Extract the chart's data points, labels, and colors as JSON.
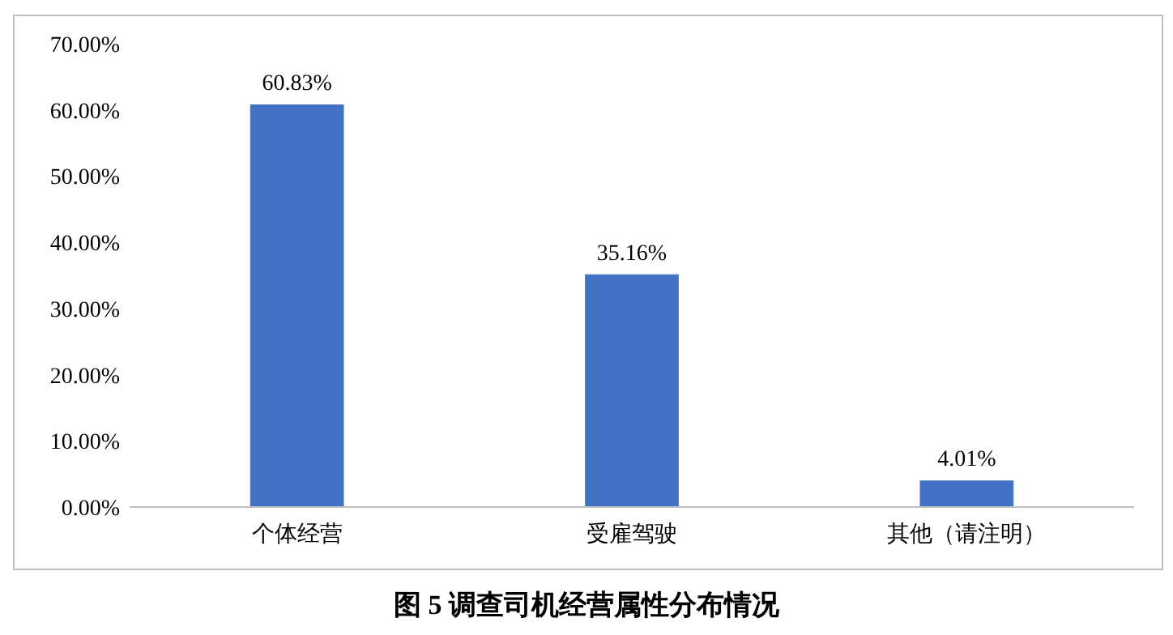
{
  "chart_data": {
    "type": "bar",
    "title": "图 5 调查司机经营属性分布情况",
    "categories": [
      "个体经营",
      "受雇驾驶",
      "其他（请注明）"
    ],
    "values": [
      60.83,
      35.16,
      4.01
    ],
    "value_labels": [
      "60.83%",
      "35.16%",
      "4.01%"
    ],
    "color": "#4472c4",
    "ylim": [
      0,
      70
    ],
    "yticks": [
      {
        "value": 0,
        "label": "0.00%"
      },
      {
        "value": 10,
        "label": "10.00%"
      },
      {
        "value": 20,
        "label": "20.00%"
      },
      {
        "value": 30,
        "label": "30.00%"
      },
      {
        "value": 40,
        "label": "40.00%"
      },
      {
        "value": 50,
        "label": "50.00%"
      },
      {
        "value": 60,
        "label": "60.00%"
      },
      {
        "value": 70,
        "label": "70.00%"
      }
    ]
  }
}
